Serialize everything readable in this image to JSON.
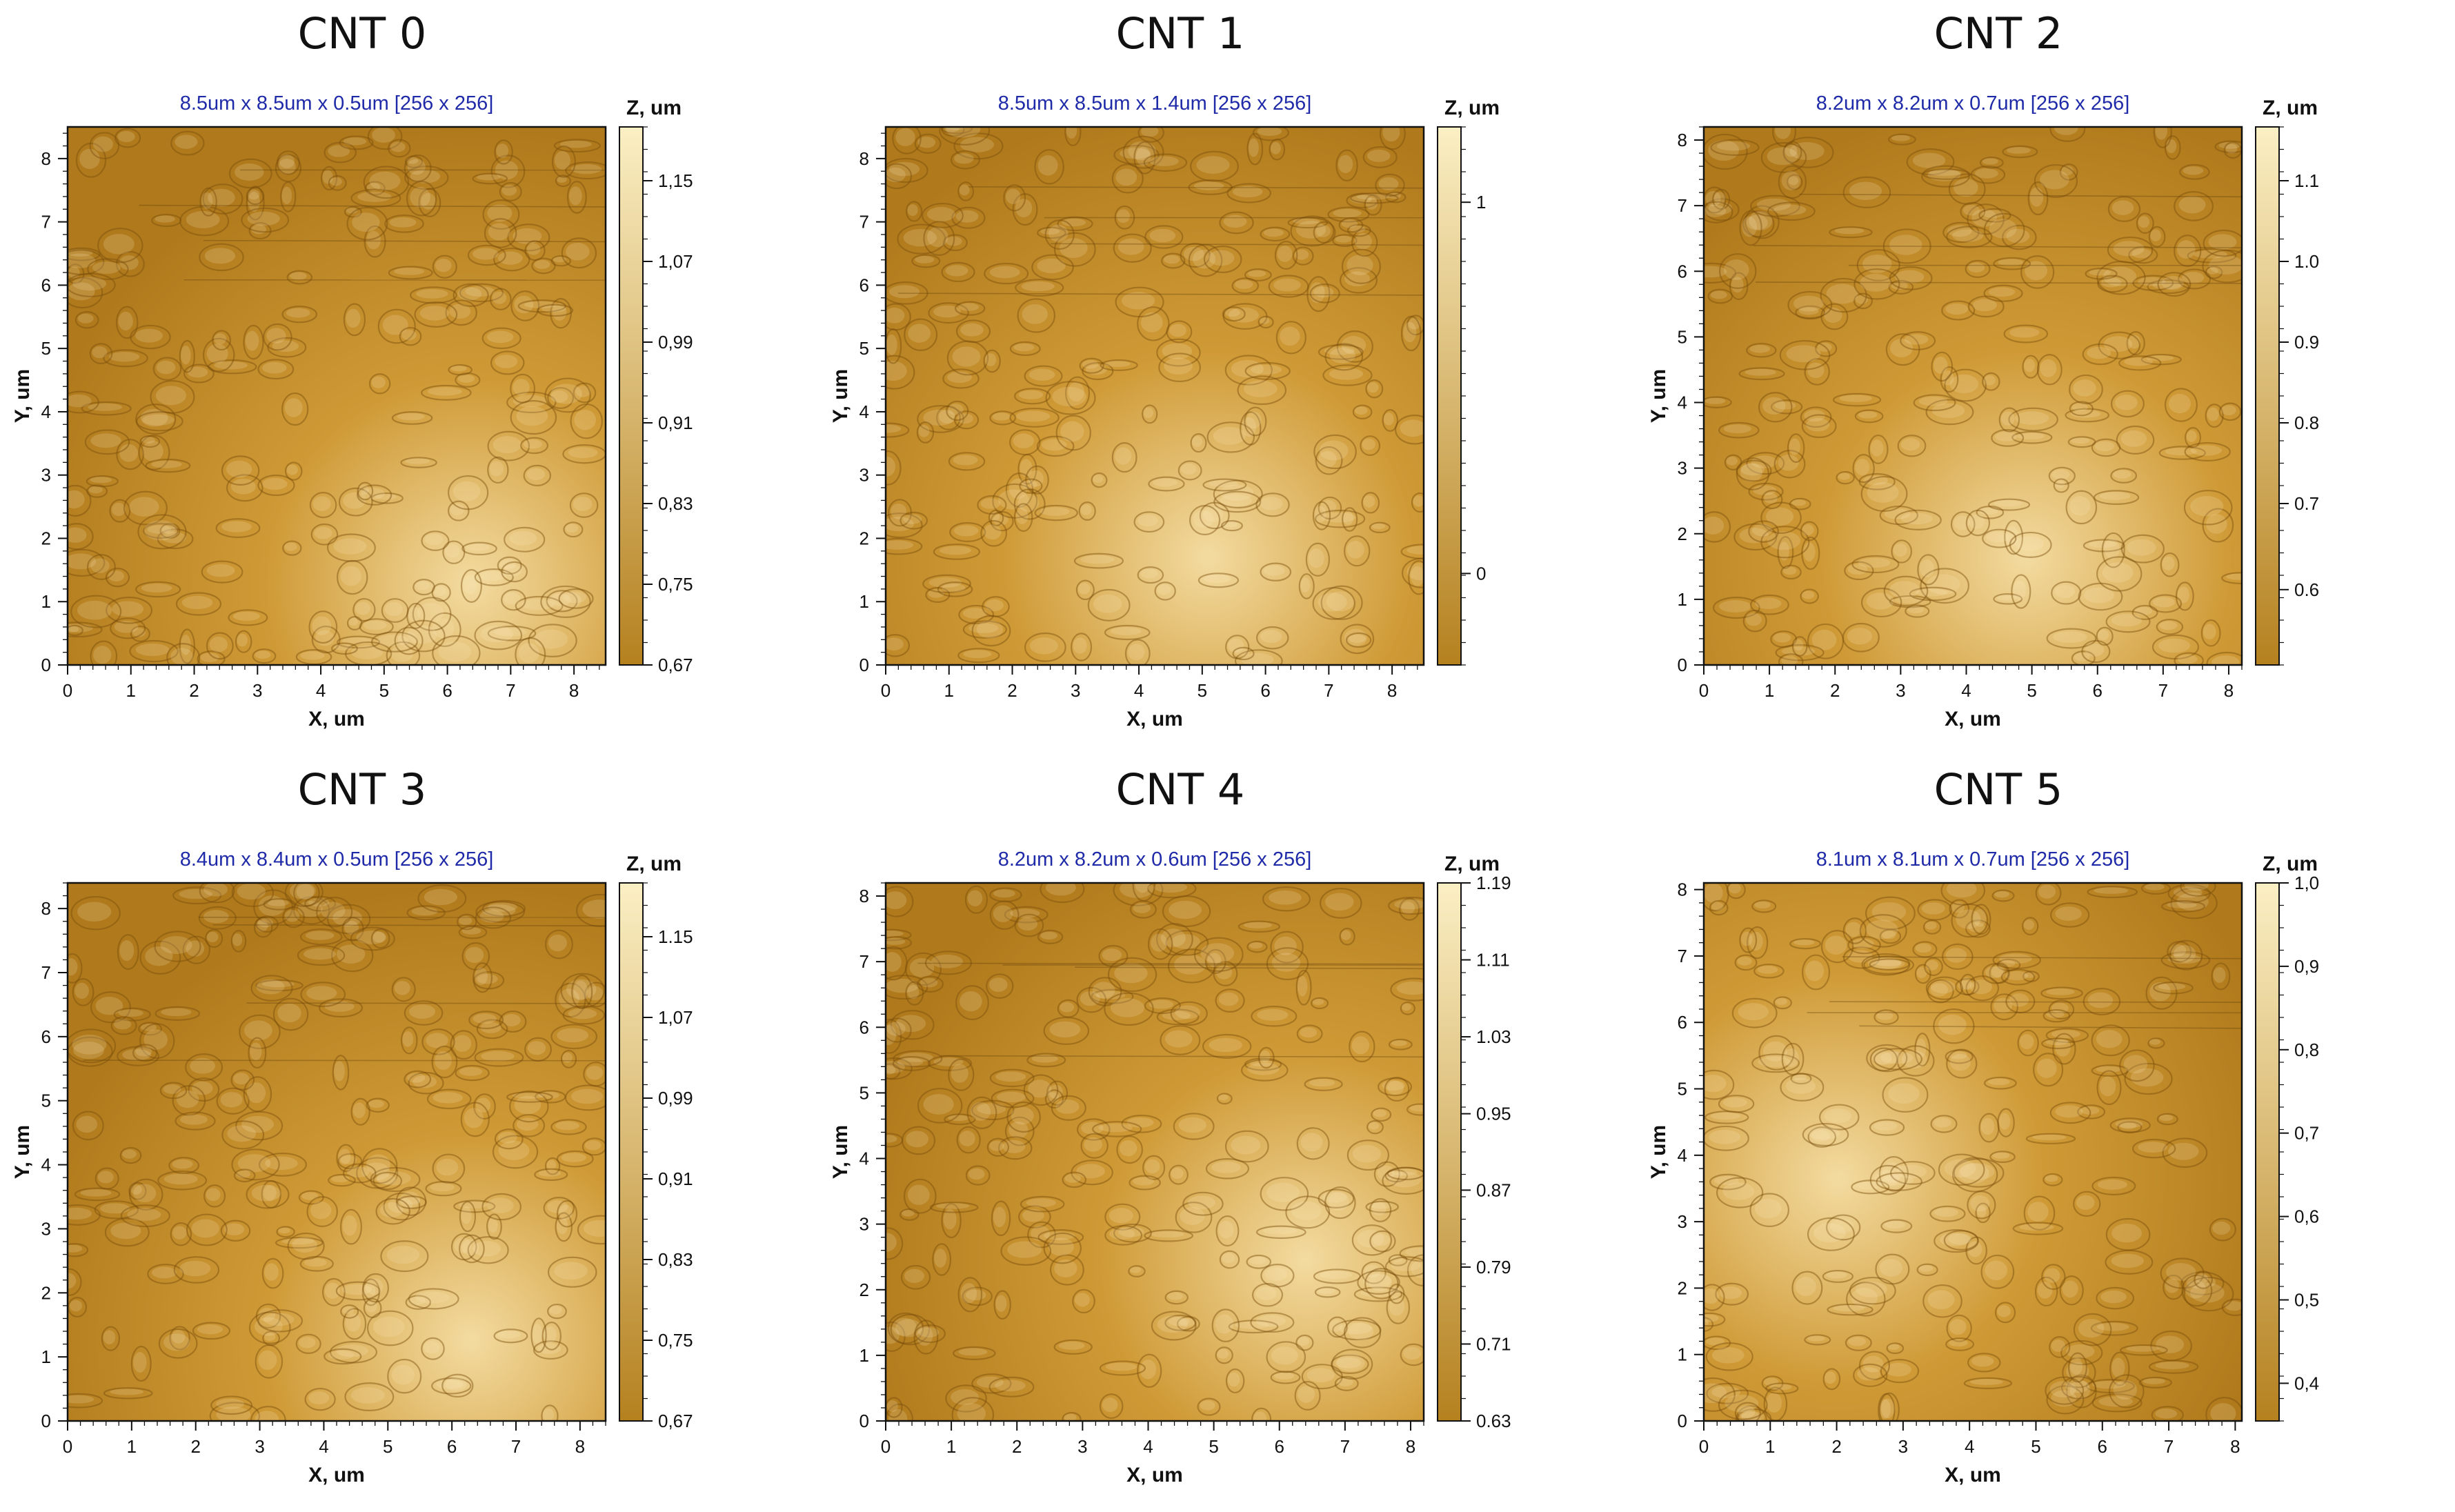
{
  "figure": {
    "panels": [
      {
        "title": "CNT 0",
        "scan_caption": "8.5um x 8.5um x 0.5um [256 x 256]",
        "x_label": "X, um",
        "y_label": "Y, um",
        "x_ticks": [
          "0",
          "1",
          "2",
          "3",
          "4",
          "5",
          "6",
          "7",
          "8"
        ],
        "y_ticks": [
          "0",
          "1",
          "2",
          "3",
          "4",
          "5",
          "6",
          "7",
          "8"
        ],
        "axis_max": 8.5,
        "colorbar_label": "Z, um",
        "colorbar_ticks": [
          "1,15",
          "1,07",
          "0,99",
          "0,91",
          "0,83",
          "0,75",
          "0,67"
        ],
        "colorbar_tick_fractions": [
          0.9,
          0.75,
          0.6,
          0.45,
          0.3,
          0.15,
          0.0
        ],
        "light_corner": "bottom-right"
      },
      {
        "title": "CNT 1",
        "scan_caption": "8.5um x 8.5um x 1.4um [256 x 256]",
        "x_label": "X, um",
        "y_label": "Y, um",
        "x_ticks": [
          "0",
          "1",
          "2",
          "3",
          "4",
          "5",
          "6",
          "7",
          "8"
        ],
        "y_ticks": [
          "0",
          "1",
          "2",
          "3",
          "4",
          "5",
          "6",
          "7",
          "8"
        ],
        "axis_max": 8.5,
        "colorbar_label": "Z, um",
        "colorbar_ticks": [
          "1",
          "0"
        ],
        "colorbar_tick_fractions": [
          0.86,
          0.17
        ],
        "light_corner": "bottom-center"
      },
      {
        "title": "CNT 2",
        "scan_caption": "8.2um x 8.2um x 0.7um [256 x 256]",
        "x_label": "X, um",
        "y_label": "Y, um",
        "x_ticks": [
          "0",
          "1",
          "2",
          "3",
          "4",
          "5",
          "6",
          "7",
          "8"
        ],
        "y_ticks": [
          "0",
          "1",
          "2",
          "3",
          "4",
          "5",
          "6",
          "7",
          "8"
        ],
        "axis_max": 8.2,
        "colorbar_label": "Z, um",
        "colorbar_ticks": [
          "1.1",
          "1.0",
          "0.9",
          "0.8",
          "0.7",
          "0.6"
        ],
        "colorbar_tick_fractions": [
          0.9,
          0.75,
          0.6,
          0.45,
          0.3,
          0.14
        ],
        "light_corner": "bottom-center"
      },
      {
        "title": "CNT 3",
        "scan_caption": "8.4um x 8.4um x 0.5um [256 x 256]",
        "x_label": "X, um",
        "y_label": "Y, um",
        "x_ticks": [
          "0",
          "1",
          "2",
          "3",
          "4",
          "5",
          "6",
          "7",
          "8"
        ],
        "y_ticks": [
          "0",
          "1",
          "2",
          "3",
          "4",
          "5",
          "6",
          "7",
          "8"
        ],
        "axis_max": 8.4,
        "colorbar_label": "Z, um",
        "colorbar_ticks": [
          "1.15",
          "1,07",
          "0,99",
          "0,91",
          "0,83",
          "0,75",
          "0,67"
        ],
        "colorbar_tick_fractions": [
          0.9,
          0.75,
          0.6,
          0.45,
          0.3,
          0.15,
          0.0
        ],
        "light_corner": "bottom-right"
      },
      {
        "title": "CNT 4",
        "scan_caption": "8.2um x 8.2um x 0.6um [256 x 256]",
        "x_label": "X, um",
        "y_label": "Y, um",
        "x_ticks": [
          "0",
          "1",
          "2",
          "3",
          "4",
          "5",
          "6",
          "7",
          "8"
        ],
        "y_ticks": [
          "0",
          "1",
          "2",
          "3",
          "4",
          "5",
          "6",
          "7",
          "8"
        ],
        "axis_max": 8.2,
        "colorbar_label": "Z, um",
        "colorbar_ticks": [
          "1.19",
          "1.11",
          "1.03",
          "0.95",
          "0.87",
          "0.79",
          "0.71",
          "0.63"
        ],
        "colorbar_tick_fractions": [
          1.0,
          0.857,
          0.714,
          0.571,
          0.429,
          0.286,
          0.143,
          0.0
        ],
        "light_corner": "right"
      },
      {
        "title": "CNT 5",
        "scan_caption": "8.1um x 8.1um x 0.7um [256 x 256]",
        "x_label": "X, um",
        "y_label": "Y, um",
        "x_ticks": [
          "0",
          "1",
          "2",
          "3",
          "4",
          "5",
          "6",
          "7",
          "8"
        ],
        "y_ticks": [
          "0",
          "1",
          "2",
          "3",
          "4",
          "5",
          "6",
          "7",
          "8"
        ],
        "axis_max": 8.1,
        "colorbar_label": "Z, um",
        "colorbar_ticks": [
          "1,0",
          "0,9",
          "0,8",
          "0,7",
          "0,6",
          "0,5",
          "0,4"
        ],
        "colorbar_tick_fractions": [
          1.0,
          0.845,
          0.69,
          0.535,
          0.38,
          0.225,
          0.07
        ],
        "light_corner": "left"
      }
    ],
    "colors": {
      "surface_dark": "#b07a1c",
      "surface_mid": "#cf9a36",
      "surface_light": "#f3dba0",
      "colorbar_top": "#fbefc4",
      "colorbar_bottom": "#b5811f",
      "caption_blue": "#1f2aa8",
      "axis_black": "#111111"
    }
  }
}
